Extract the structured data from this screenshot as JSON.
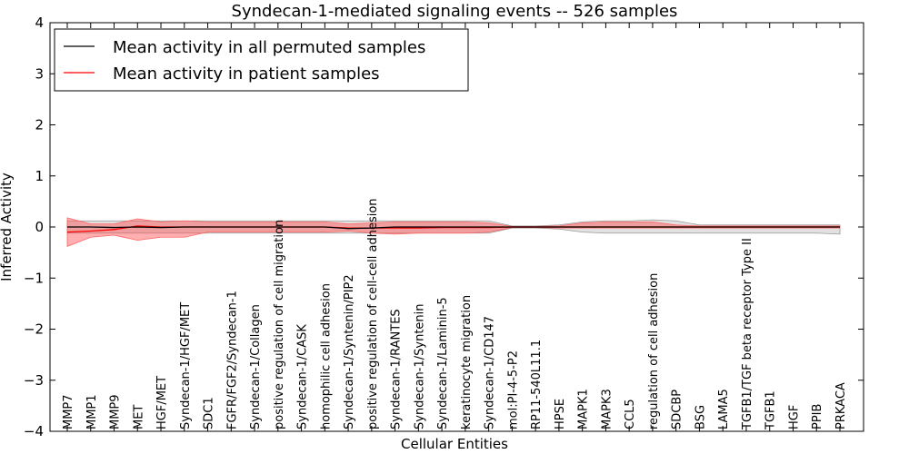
{
  "chart_data": {
    "type": "line",
    "title": "Syndecan-1-mediated signaling events -- 526 samples",
    "xlabel": "Cellular Entities",
    "ylabel": "Inferred Activity",
    "ylim": [
      -4,
      4
    ],
    "yticks": [
      4,
      3,
      2,
      1,
      0,
      -1,
      -2,
      -3,
      -4
    ],
    "ytick_labels": [
      "4",
      "3",
      "2",
      "1",
      "0",
      "−1",
      "−2",
      "−3",
      "−4"
    ],
    "grid": false,
    "legend_position": "top-left",
    "categories": [
      "MMP7",
      "MMP1",
      "MMP9",
      "MET",
      "HGF/MET",
      "Syndecan-1/HGF/MET",
      "SDC1",
      "FGFR/FGF2/Syndecan-1",
      "Syndecan-1/Collagen",
      "positive regulation of cell migration",
      "Syndecan-1/CASK",
      "homophilic cell adhesion",
      "Syndecan-1/Syntenin/PIP2",
      "positive regulation of cell-cell adhesion",
      "Syndecan-1/RANTES",
      "Syndecan-1/Syntenin",
      "Syndecan-1/Laminin-5",
      "keratinocyte migration",
      "Syndecan-1/CD147",
      "mol:PI-4-5-P2",
      "RP11-540L11.1",
      "HPSE",
      "MAPK1",
      "MAPK3",
      "CCL5",
      "regulation of cell adhesion",
      "SDCBP",
      "BSG",
      "LAMA5",
      "TGFB1/TGF beta receptor Type II",
      "TGFB1",
      "HGF",
      "PPIB",
      "PRKACA"
    ],
    "series": [
      {
        "name": "Mean activity in all permuted samples",
        "color": "#000000",
        "values": [
          0.0,
          0.0,
          -0.01,
          0.0,
          -0.01,
          0.0,
          0.0,
          0.0,
          0.0,
          0.0,
          0.0,
          0.0,
          -0.03,
          -0.02,
          0.0,
          0.0,
          0.0,
          0.0,
          0.0,
          0.0,
          0.0,
          0.0,
          0.0,
          0.0,
          0.0,
          0.0,
          0.0,
          0.0,
          0.0,
          0.0,
          0.0,
          0.0,
          0.0,
          0.0
        ],
        "band_low": [
          -0.12,
          -0.12,
          -0.12,
          -0.12,
          -0.12,
          -0.12,
          -0.12,
          -0.12,
          -0.12,
          -0.12,
          -0.12,
          -0.12,
          -0.12,
          -0.12,
          -0.12,
          -0.12,
          -0.12,
          -0.12,
          -0.12,
          -0.02,
          -0.02,
          -0.04,
          -0.1,
          -0.12,
          -0.12,
          -0.12,
          -0.12,
          -0.12,
          -0.12,
          -0.12,
          -0.12,
          -0.12,
          -0.12,
          -0.14
        ],
        "band_high": [
          0.12,
          0.12,
          0.12,
          0.12,
          0.12,
          0.12,
          0.12,
          0.12,
          0.12,
          0.12,
          0.12,
          0.12,
          0.12,
          0.12,
          0.12,
          0.12,
          0.12,
          0.12,
          0.12,
          0.02,
          0.02,
          0.04,
          0.1,
          0.12,
          0.12,
          0.14,
          0.12,
          0.04,
          0.04,
          0.04,
          0.04,
          0.04,
          0.04,
          0.04
        ]
      },
      {
        "name": "Mean activity in patient samples",
        "color": "#ff0000",
        "values": [
          -0.1,
          -0.08,
          -0.05,
          0.02,
          0.0,
          0.0,
          0.0,
          0.0,
          0.0,
          0.0,
          0.0,
          0.0,
          -0.02,
          -0.02,
          -0.02,
          -0.02,
          -0.01,
          -0.01,
          -0.01,
          0.0,
          0.0,
          0.0,
          0.0,
          0.0,
          0.0,
          0.0,
          0.0,
          0.0,
          0.0,
          0.0,
          0.0,
          0.0,
          0.0,
          0.0
        ],
        "band_low": [
          -0.38,
          -0.2,
          -0.16,
          -0.26,
          -0.2,
          -0.2,
          -0.1,
          -0.1,
          -0.1,
          -0.1,
          -0.1,
          -0.1,
          -0.08,
          -0.12,
          -0.14,
          -0.12,
          -0.12,
          -0.12,
          -0.1,
          -0.01,
          -0.01,
          -0.02,
          -0.02,
          -0.02,
          -0.02,
          -0.02,
          -0.02,
          -0.02,
          -0.02,
          -0.02,
          -0.02,
          -0.02,
          -0.02,
          -0.02
        ],
        "band_high": [
          0.18,
          0.06,
          0.06,
          0.16,
          0.1,
          0.12,
          0.1,
          0.1,
          0.1,
          0.1,
          0.1,
          0.1,
          0.06,
          0.08,
          0.1,
          0.1,
          0.1,
          0.1,
          0.08,
          0.01,
          0.01,
          0.02,
          0.08,
          0.1,
          0.1,
          0.1,
          0.04,
          0.02,
          0.02,
          0.02,
          0.02,
          0.02,
          0.02,
          0.02
        ]
      }
    ]
  }
}
